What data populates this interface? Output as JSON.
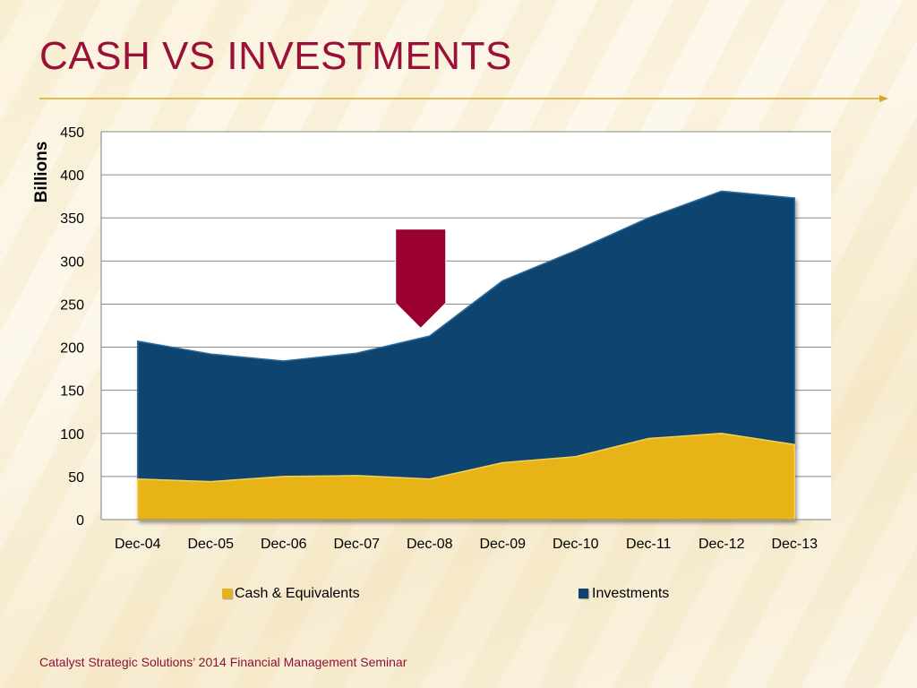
{
  "slide": {
    "title": "CASH VS INVESTMENTS",
    "footer": "Catalyst Strategic Solutions’ 2014 Financial Management Seminar"
  },
  "colors": {
    "title": "#9a1037",
    "rule": "#d9a62a",
    "cash": "#e7b318",
    "investments": "#0b4470",
    "marker": "#99002f"
  },
  "chart_data": {
    "type": "area",
    "stacked": true,
    "title": "",
    "xlabel": "",
    "ylabel": "Billions",
    "categories": [
      "Dec-04",
      "Dec-05",
      "Dec-06",
      "Dec-07",
      "Dec-08",
      "Dec-09",
      "Dec-10",
      "Dec-11",
      "Dec-12",
      "Dec-13"
    ],
    "ylim": [
      0,
      450
    ],
    "yticks": [
      0,
      50,
      100,
      150,
      200,
      250,
      300,
      350,
      400,
      450
    ],
    "grid": true,
    "legend_position": "bottom",
    "series": [
      {
        "name": "Cash & Equivalents",
        "values": [
          47,
          44,
          50,
          51,
          47,
          66,
          73,
          94,
          100,
          87
        ]
      },
      {
        "name": "Investments",
        "values": [
          160,
          148,
          134,
          142,
          166,
          211,
          239,
          256,
          281,
          286
        ]
      }
    ],
    "annotations": [
      {
        "type": "down-arrow",
        "at": "Dec-08",
        "from_value": 337,
        "to_value": 222
      }
    ]
  }
}
